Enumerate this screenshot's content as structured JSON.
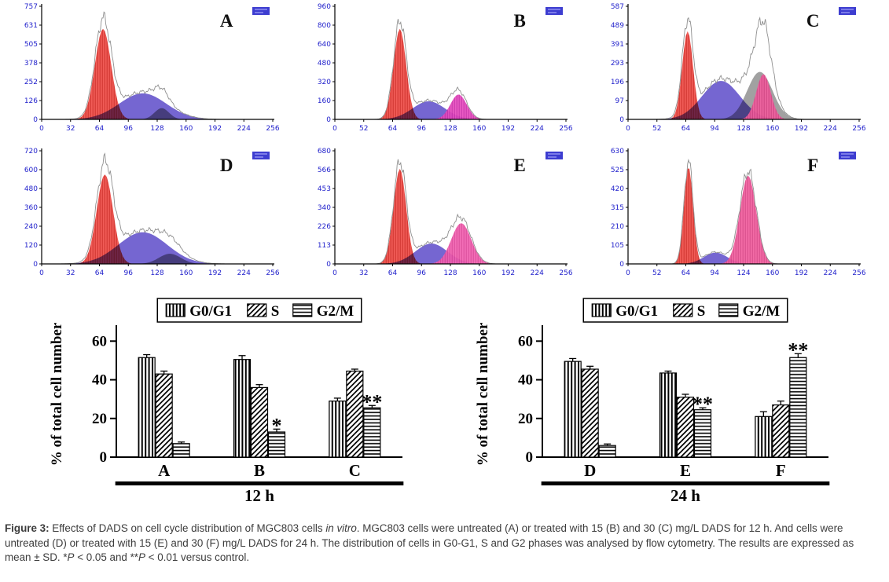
{
  "figure": {
    "background": "#ffffff",
    "accent_blue": "#2222cc",
    "axis_color": "#000000"
  },
  "chart_data": [
    {
      "type": "flow-histogram",
      "panel": "A",
      "y_ticks": [
        "757",
        "631",
        "505",
        "378",
        "252",
        "126",
        "0"
      ],
      "x_ticks": [
        "0",
        "32",
        "64",
        "96",
        "128",
        "160",
        "192",
        "224",
        "256"
      ],
      "x_max": 256,
      "components": [
        {
          "name": "G0-G1 peak",
          "color": "#f0504a",
          "line": "#c8201c",
          "center": 68,
          "sigma": 9,
          "height": 0.8
        },
        {
          "name": "S phase",
          "color": "#6a5acd",
          "blend": "multiply",
          "center": 112,
          "sigma": 26,
          "height": 0.23
        },
        {
          "name": "G2-M bump",
          "color": "#8f8f8f",
          "blend": "multiply",
          "center": 133,
          "sigma": 8,
          "height": 0.1
        }
      ]
    },
    {
      "type": "flow-histogram",
      "panel": "B",
      "y_ticks": [
        "960",
        "800",
        "640",
        "480",
        "320",
        "160",
        "0"
      ],
      "x_ticks": [
        "0",
        "52",
        "64",
        "96",
        "128",
        "160",
        "192",
        "224",
        "256"
      ],
      "x_max": 256,
      "components": [
        {
          "name": "G0-G1 peak",
          "color": "#f0504a",
          "line": "#c8201c",
          "center": 72,
          "sigma": 7,
          "height": 0.8
        },
        {
          "name": "S phase",
          "color": "#6a5acd",
          "blend": "multiply",
          "center": 104,
          "sigma": 18,
          "height": 0.16
        },
        {
          "name": "G2-M peak",
          "color": "#e84fc0",
          "line": "#c026a3",
          "center": 137,
          "sigma": 9,
          "height": 0.22
        }
      ]
    },
    {
      "type": "flow-histogram",
      "panel": "C",
      "y_ticks": [
        "587",
        "489",
        "391",
        "293",
        "196",
        "97",
        "0"
      ],
      "x_ticks": [
        "0",
        "52",
        "64",
        "94",
        "128",
        "160",
        "192",
        "224",
        "256"
      ],
      "x_max": 256,
      "components": [
        {
          "name": "G0-G1 peak",
          "color": "#f0504a",
          "line": "#c8201c",
          "center": 66,
          "sigma": 6,
          "height": 0.78
        },
        {
          "name": "S phase",
          "color": "#6a5acd",
          "blend": "multiply",
          "center": 103,
          "sigma": 21,
          "height": 0.34
        },
        {
          "name": "G2 shoulder",
          "color": "#9a9a9a",
          "blend": "multiply",
          "center": 146,
          "sigma": 14,
          "height": 0.42
        },
        {
          "name": "G2-M peak",
          "color": "#f2609f",
          "line": "#d13d7f",
          "center": 150,
          "sigma": 8,
          "height": 0.4
        }
      ]
    },
    {
      "type": "flow-histogram",
      "panel": "D",
      "y_ticks": [
        "720",
        "600",
        "480",
        "360",
        "240",
        "120",
        "0"
      ],
      "x_ticks": [
        "0",
        "32",
        "64",
        "96",
        "128",
        "160",
        "192",
        "224",
        "256"
      ],
      "x_max": 256,
      "components": [
        {
          "name": "G0-G1 peak",
          "color": "#f0504a",
          "line": "#c8201c",
          "center": 70,
          "sigma": 9,
          "height": 0.79
        },
        {
          "name": "S phase",
          "color": "#6a5acd",
          "blend": "multiply",
          "center": 112,
          "sigma": 27,
          "height": 0.28
        },
        {
          "name": "G2-M bump",
          "color": "#8f8f8f",
          "blend": "multiply",
          "center": 142,
          "sigma": 12,
          "height": 0.09
        }
      ]
    },
    {
      "type": "flow-histogram",
      "panel": "E",
      "y_ticks": [
        "680",
        "566",
        "453",
        "340",
        "226",
        "113",
        "0"
      ],
      "x_ticks": [
        "0",
        "32",
        "64",
        "96",
        "128",
        "160",
        "192",
        "224",
        "256"
      ],
      "x_max": 256,
      "components": [
        {
          "name": "G0-G1 peak",
          "color": "#f0504a",
          "line": "#c8201c",
          "center": 72,
          "sigma": 7,
          "height": 0.84
        },
        {
          "name": "S phase",
          "color": "#6a5acd",
          "blend": "multiply",
          "center": 107,
          "sigma": 18,
          "height": 0.18
        },
        {
          "name": "G2-M peak",
          "color": "#f263b2",
          "line": "#d63d92",
          "center": 140,
          "sigma": 11,
          "height": 0.36
        }
      ]
    },
    {
      "type": "flow-histogram",
      "panel": "F",
      "y_ticks": [
        "630",
        "525",
        "420",
        "315",
        "210",
        "105",
        "0"
      ],
      "x_ticks": [
        "0",
        "52",
        "64",
        "94",
        "124",
        "160",
        "192",
        "224",
        "256"
      ],
      "x_max": 256,
      "components": [
        {
          "name": "G0-G1 peak",
          "color": "#f0504a",
          "line": "#c8201c",
          "center": 67,
          "sigma": 5,
          "height": 0.86
        },
        {
          "name": "S phase",
          "color": "#6a5acd",
          "blend": "multiply",
          "center": 97,
          "sigma": 13,
          "height": 0.1
        },
        {
          "name": "G2-M peak",
          "color": "#f2609f",
          "line": "#d13d7f",
          "center": 133,
          "sigma": 9,
          "height": 0.78
        }
      ]
    },
    {
      "type": "bar",
      "time_label": "12 h",
      "ylabel": "% of total cell number",
      "y_ticks": [
        0,
        20,
        40,
        60
      ],
      "ylim": [
        0,
        65
      ],
      "grid": false,
      "legend_position": "top",
      "categories": [
        "A",
        "B",
        "C"
      ],
      "series": [
        {
          "name": "G0/G1",
          "pattern": "vertical",
          "values": [
            51.5,
            50.5,
            29
          ],
          "errors": [
            1.5,
            2,
            1.5
          ]
        },
        {
          "name": "S",
          "pattern": "diagonal",
          "values": [
            43,
            36,
            44.5
          ],
          "errors": [
            1.5,
            1.5,
            1
          ]
        },
        {
          "name": "G2/M",
          "pattern": "horizontal",
          "values": [
            7,
            13,
            25.5
          ],
          "errors": [
            0.8,
            1.5,
            1.2
          ]
        }
      ],
      "significance": [
        {
          "category": "B",
          "series": "G2/M",
          "marker": "*"
        },
        {
          "category": "C",
          "series": "G2/M",
          "marker": "**"
        }
      ]
    },
    {
      "type": "bar",
      "time_label": "24 h",
      "ylabel": "% of total cell number",
      "y_ticks": [
        0,
        20,
        40,
        60
      ],
      "ylim": [
        0,
        65
      ],
      "grid": false,
      "legend_position": "top",
      "categories": [
        "D",
        "E",
        "F"
      ],
      "series": [
        {
          "name": "G0/G1",
          "pattern": "vertical",
          "values": [
            49.5,
            43.5,
            21
          ],
          "errors": [
            1.5,
            1,
            2.5
          ]
        },
        {
          "name": "S",
          "pattern": "diagonal",
          "values": [
            45.5,
            31,
            27
          ],
          "errors": [
            1.5,
            1.5,
            2
          ]
        },
        {
          "name": "G2/M",
          "pattern": "horizontal",
          "values": [
            6,
            24.5,
            51.5
          ],
          "errors": [
            0.8,
            1,
            2
          ]
        }
      ],
      "significance": [
        {
          "category": "E",
          "series": "G2/M",
          "marker": "**"
        },
        {
          "category": "F",
          "series": "G2/M",
          "marker": "**"
        }
      ]
    }
  ],
  "caption": {
    "figure_label": "Figure 3:",
    "part1": " Effects of DADS on cell cycle distribution of MGC803 cells ",
    "italic1": "in vitro",
    "part2": ". MGC803 cells were untreated (A) or treated with 15 (B) and 30 (C) mg/L DADS for 12 h. And cells were untreated (D) or treated with 15 (E) and 30 (F) mg/L DADS for 24 h. The distribution of cells in G0-G1, S and G2 phases was analysed by flow cytometry. The results are expressed as mean ± SD. *",
    "italic_p1": "P",
    "part3": " < 0.05 and **",
    "italic_p2": "P",
    "part4": " < 0.01 versus control."
  }
}
